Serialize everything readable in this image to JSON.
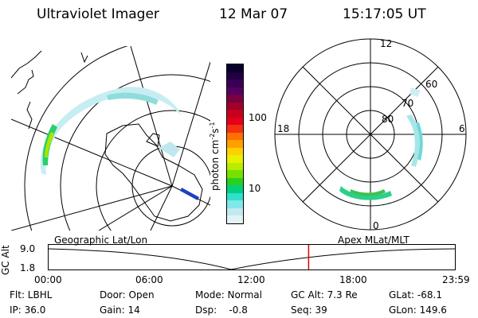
{
  "header": {
    "instrument": "Ultraviolet Imager",
    "date": "12 Mar 07",
    "time": "15:17:05 UT"
  },
  "colorbar": {
    "unit_label": "photon cm-2s-1",
    "ticks": [
      "100",
      "10"
    ],
    "colors": [
      "#0a0030",
      "#200040",
      "#3a0055",
      "#550060",
      "#7a0040",
      "#a0002a",
      "#c8001c",
      "#e4001c",
      "#f43010",
      "#ff7000",
      "#ffa000",
      "#ffd000",
      "#e8f000",
      "#b8ec00",
      "#78e000",
      "#2ad020",
      "#00d07c",
      "#30e0c8",
      "#80e8e8",
      "#c0eaf0",
      "#e4f2f6"
    ]
  },
  "geo_panel": {
    "label": "Geographic Lat/Lon"
  },
  "polar_panel": {
    "label": "Apex MLat/MLT",
    "mlt_labels": [
      "12",
      "18",
      "6",
      "0"
    ],
    "lat_labels": [
      "60",
      "70",
      "80"
    ]
  },
  "timeline": {
    "axis_label": "GC Alt",
    "y_ticks": [
      "9.0",
      "1.8"
    ],
    "x_ticks": [
      "00:00",
      "06:00",
      "12:00",
      "18:00",
      "23:59"
    ],
    "current_marker_fraction": 0.64,
    "marker_color": "#e00000"
  },
  "status": {
    "filter": "Flt: LBHL",
    "ip": "IP: 36.0",
    "door": "Door: Open",
    "gain": "Gain: 14",
    "mode": "Mode: Normal",
    "dsp": "Dsp:    -0.8",
    "gc_alt": "GC Alt: 7.3 Re",
    "seq": "Seq: 39",
    "glat": "GLat: -68.1",
    "glon": "GLon: 149.6"
  }
}
